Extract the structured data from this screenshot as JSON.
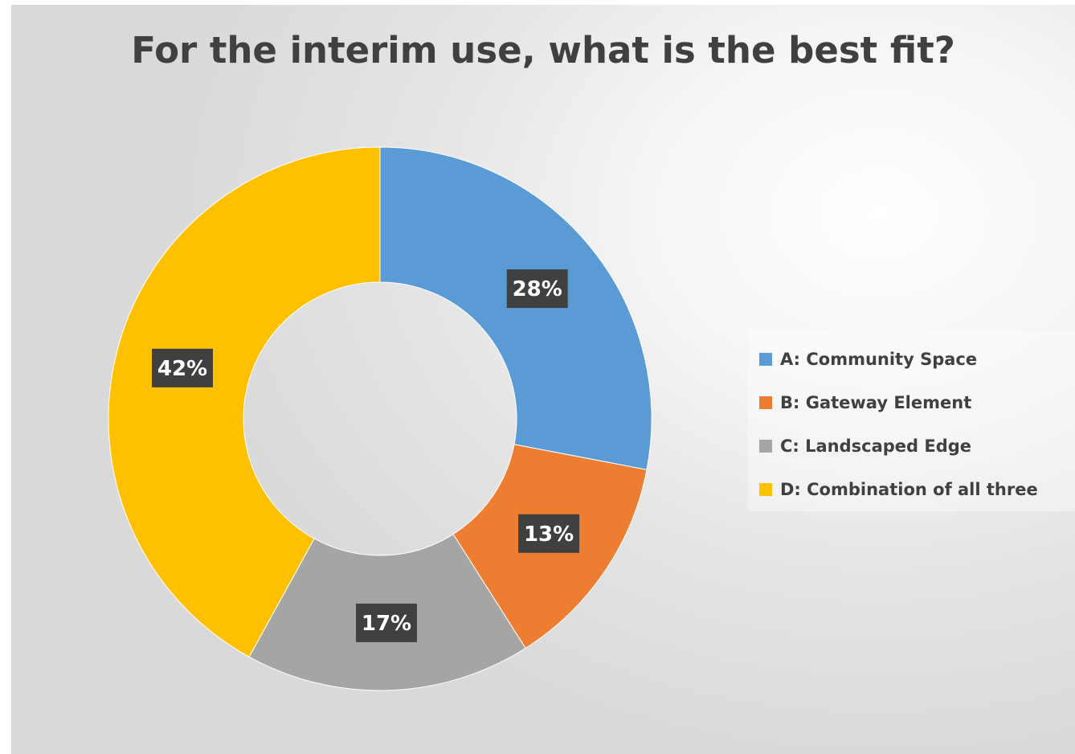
{
  "chart_data": {
    "type": "pie",
    "subtype": "doughnut",
    "title": "For the interim use, what is the best fit?",
    "categories": [
      "A: Community Space",
      "B: Gateway Element",
      "C: Landscaped Edge",
      "D: Combination of all three"
    ],
    "values": [
      28,
      13,
      17,
      42
    ],
    "data_labels": [
      "28%",
      "13%",
      "17%",
      "42%"
    ],
    "colors": [
      "#5B9BD5",
      "#ED7D31",
      "#A5A5A5",
      "#FFC000"
    ],
    "legend_position": "right",
    "label_color": "#404040"
  }
}
